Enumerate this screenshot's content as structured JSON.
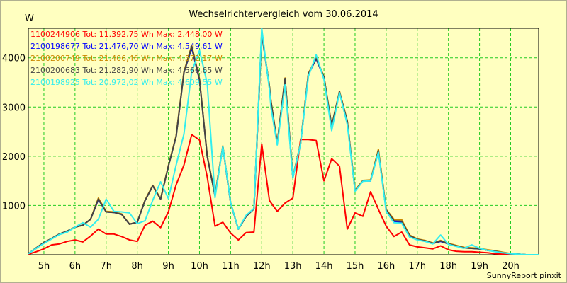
{
  "chart_data": {
    "type": "line",
    "title": "Wechselrichtervergleich vom 30.06.2014",
    "ylabel": "W",
    "xlabel": "",
    "ylim": [
      0,
      4600
    ],
    "xlim": [
      4.5,
      20.9
    ],
    "yticks": [
      1000,
      2000,
      3000,
      4000
    ],
    "xticks": [
      5,
      6,
      7,
      8,
      9,
      10,
      11,
      12,
      13,
      14,
      15,
      16,
      17,
      18,
      19,
      20
    ],
    "xtick_labels": [
      "5h",
      "6h",
      "7h",
      "8h",
      "9h",
      "10h",
      "11h",
      "12h",
      "13h",
      "14h",
      "15h",
      "16h",
      "17h",
      "18h",
      "19h",
      "20h"
    ],
    "grid": true,
    "legend_position": "top-left",
    "footer": "SunnyReport pinxit",
    "series": [
      {
        "name": "1100244906",
        "legend": "1100244906 Tot: 11.392,75 Wh Max: 2.448,00 W",
        "color": "#ff0000",
        "width": 2,
        "x": [
          4.5,
          4.75,
          5.0,
          5.25,
          5.5,
          5.75,
          6.0,
          6.25,
          6.5,
          6.75,
          7.0,
          7.25,
          7.5,
          7.75,
          8.0,
          8.25,
          8.5,
          8.75,
          9.0,
          9.25,
          9.5,
          9.75,
          10.0,
          10.25,
          10.5,
          10.75,
          11.0,
          11.25,
          11.5,
          11.75,
          12.0,
          12.25,
          12.5,
          12.75,
          13.0,
          13.25,
          13.5,
          13.75,
          14.0,
          14.25,
          14.5,
          14.75,
          15.0,
          15.25,
          15.5,
          15.75,
          16.0,
          16.25,
          16.5,
          16.75,
          17.0,
          17.25,
          17.5,
          17.75,
          18.0,
          18.25,
          18.5,
          18.75,
          19.0,
          19.25,
          19.5,
          19.75,
          20.0,
          20.25,
          20.5,
          20.9
        ],
        "y": [
          10,
          60,
          120,
          200,
          220,
          270,
          300,
          260,
          380,
          520,
          420,
          420,
          370,
          300,
          270,
          600,
          680,
          550,
          870,
          1420,
          1820,
          2440,
          2330,
          1580,
          580,
          660,
          440,
          300,
          450,
          460,
          2250,
          1100,
          880,
          1050,
          1150,
          2340,
          2340,
          2320,
          1500,
          1950,
          1800,
          520,
          850,
          780,
          1280,
          920,
          580,
          370,
          460,
          200,
          160,
          140,
          120,
          180,
          100,
          70,
          60,
          60,
          50,
          40,
          20,
          10,
          5,
          0,
          0,
          0
        ]
      },
      {
        "name": "2100198677",
        "legend": "2100198677 Tot: 21.476,70 Wh Max: 4.549,61 W",
        "color": "#0000ff",
        "width": 2,
        "x": [
          4.5,
          4.75,
          5.0,
          5.25,
          5.5,
          5.75,
          6.0,
          6.25,
          6.5,
          6.75,
          7.0,
          7.25,
          7.5,
          7.75,
          8.0,
          8.25,
          8.5,
          8.75,
          9.0,
          9.25,
          9.5,
          9.75,
          10.0,
          10.25,
          10.5,
          10.75,
          11.0,
          11.25,
          11.5,
          11.75,
          12.0,
          12.25,
          12.3,
          12.5,
          12.75,
          13.0,
          13.25,
          13.5,
          13.75,
          14.0,
          14.25,
          14.5,
          14.75,
          15.0,
          15.25,
          15.5,
          15.75,
          16.0,
          16.25,
          16.5,
          16.75,
          17.0,
          17.25,
          17.5,
          17.75,
          18.0,
          18.25,
          18.5,
          18.75,
          19.0,
          19.25,
          19.5,
          19.75,
          20.0,
          20.25,
          20.5,
          20.9
        ],
        "y": [
          20,
          130,
          240,
          330,
          420,
          480,
          560,
          600,
          720,
          1120,
          870,
          860,
          820,
          620,
          660,
          1100,
          1400,
          1130,
          1800,
          2400,
          3700,
          4200,
          3550,
          2000,
          1200,
          2200,
          1050,
          520,
          780,
          930,
          4500,
          3400,
          3100,
          2260,
          3580,
          1570,
          2260,
          3660,
          3980,
          3600,
          2600,
          3300,
          2700,
          1300,
          1500,
          1500,
          2100,
          900,
          670,
          660,
          380,
          310,
          280,
          230,
          270,
          220,
          180,
          140,
          130,
          120,
          90,
          70,
          40,
          20,
          10,
          0,
          0
        ]
      },
      {
        "name": "2100200749",
        "legend": "2100200749 Tot: 21.406,46 Wh Max: 4.572,17 W",
        "color": "#cc8800",
        "width": 2,
        "x": [
          4.5,
          4.75,
          5.0,
          5.25,
          5.5,
          5.75,
          6.0,
          6.25,
          6.5,
          6.75,
          7.0,
          7.25,
          7.5,
          7.75,
          8.0,
          8.25,
          8.5,
          8.75,
          9.0,
          9.25,
          9.5,
          9.75,
          10.0,
          10.25,
          10.5,
          10.75,
          11.0,
          11.25,
          11.5,
          11.75,
          12.0,
          12.25,
          12.3,
          12.5,
          12.75,
          13.0,
          13.25,
          13.5,
          13.75,
          14.0,
          14.25,
          14.5,
          14.75,
          15.0,
          15.25,
          15.5,
          15.75,
          16.0,
          16.25,
          16.5,
          16.75,
          17.0,
          17.25,
          17.5,
          17.75,
          18.0,
          18.25,
          18.5,
          18.75,
          19.0,
          19.25,
          19.5,
          19.75,
          20.0,
          20.25,
          20.5,
          20.9
        ],
        "y": [
          20,
          130,
          240,
          330,
          420,
          480,
          560,
          600,
          720,
          1150,
          880,
          870,
          830,
          620,
          660,
          1110,
          1410,
          1140,
          1810,
          2420,
          3720,
          4250,
          3570,
          2010,
          1210,
          2210,
          1060,
          520,
          790,
          940,
          4520,
          3420,
          3120,
          2270,
          3590,
          1580,
          2270,
          3680,
          4000,
          3620,
          2620,
          3320,
          2720,
          1310,
          1510,
          1520,
          2140,
          920,
          720,
          710,
          400,
          320,
          290,
          240,
          290,
          230,
          190,
          150,
          140,
          130,
          100,
          80,
          50,
          25,
          10,
          0,
          0
        ]
      },
      {
        "name": "2100200683",
        "legend": "2100200683 Tot: 21.282,90 Wh Max: 4.566,65 W",
        "color": "#444444",
        "width": 2,
        "x": [
          4.5,
          4.75,
          5.0,
          5.25,
          5.5,
          5.75,
          6.0,
          6.25,
          6.5,
          6.75,
          7.0,
          7.25,
          7.5,
          7.75,
          8.0,
          8.25,
          8.5,
          8.75,
          9.0,
          9.25,
          9.5,
          9.75,
          10.0,
          10.25,
          10.5,
          10.75,
          11.0,
          11.25,
          11.5,
          11.75,
          12.0,
          12.25,
          12.3,
          12.5,
          12.75,
          13.0,
          13.25,
          13.5,
          13.75,
          14.0,
          14.25,
          14.5,
          14.75,
          15.0,
          15.25,
          15.5,
          15.75,
          16.0,
          16.25,
          16.5,
          16.75,
          17.0,
          17.25,
          17.5,
          17.75,
          18.0,
          18.25,
          18.5,
          18.75,
          19.0,
          19.25,
          19.5,
          19.75,
          20.0,
          20.25,
          20.5,
          20.9
        ],
        "y": [
          20,
          140,
          250,
          330,
          420,
          480,
          560,
          600,
          720,
          1130,
          870,
          860,
          820,
          620,
          660,
          1100,
          1400,
          1130,
          1800,
          2400,
          3700,
          4230,
          3560,
          2000,
          1200,
          2200,
          1050,
          520,
          780,
          930,
          4510,
          3410,
          3110,
          2260,
          3580,
          1570,
          2260,
          3670,
          3990,
          3610,
          2610,
          3310,
          2710,
          1300,
          1500,
          1510,
          2110,
          910,
          690,
          680,
          390,
          310,
          280,
          230,
          280,
          220,
          180,
          140,
          130,
          120,
          90,
          70,
          40,
          20,
          10,
          0,
          0
        ]
      },
      {
        "name": "2100198925",
        "legend": "2100198925 Tot: 20.972,02 Wh Max: 4.609,55 W",
        "color": "#33eeee",
        "width": 2,
        "x": [
          4.5,
          4.75,
          5.0,
          5.25,
          5.5,
          5.75,
          6.0,
          6.25,
          6.5,
          6.75,
          7.0,
          7.25,
          7.5,
          7.75,
          8.0,
          8.25,
          8.5,
          8.75,
          9.0,
          9.25,
          9.5,
          9.75,
          10.0,
          10.25,
          10.5,
          10.75,
          11.0,
          11.25,
          11.5,
          11.75,
          12.0,
          12.25,
          12.3,
          12.5,
          12.75,
          13.0,
          13.25,
          13.5,
          13.75,
          14.0,
          14.25,
          14.5,
          14.75,
          15.0,
          15.25,
          15.5,
          15.75,
          16.0,
          16.25,
          16.5,
          16.75,
          17.0,
          17.25,
          17.5,
          17.75,
          18.0,
          18.25,
          18.5,
          18.75,
          19.0,
          19.25,
          19.5,
          19.75,
          20.0,
          20.25,
          20.5,
          20.9
        ],
        "y": [
          20,
          130,
          230,
          320,
          410,
          460,
          560,
          650,
          560,
          720,
          1130,
          880,
          870,
          850,
          630,
          690,
          1110,
          1480,
          1140,
          1820,
          2450,
          3720,
          4150,
          3480,
          1160,
          2200,
          1060,
          520,
          800,
          940,
          4600,
          3350,
          2980,
          2230,
          3450,
          1560,
          2250,
          3620,
          4060,
          3560,
          2520,
          3290,
          2650,
          1290,
          1490,
          1500,
          2080,
          880,
          650,
          640,
          360,
          300,
          270,
          220,
          400,
          210,
          170,
          130,
          200,
          130,
          90,
          60,
          40,
          20,
          10,
          0,
          0
        ]
      }
    ]
  }
}
